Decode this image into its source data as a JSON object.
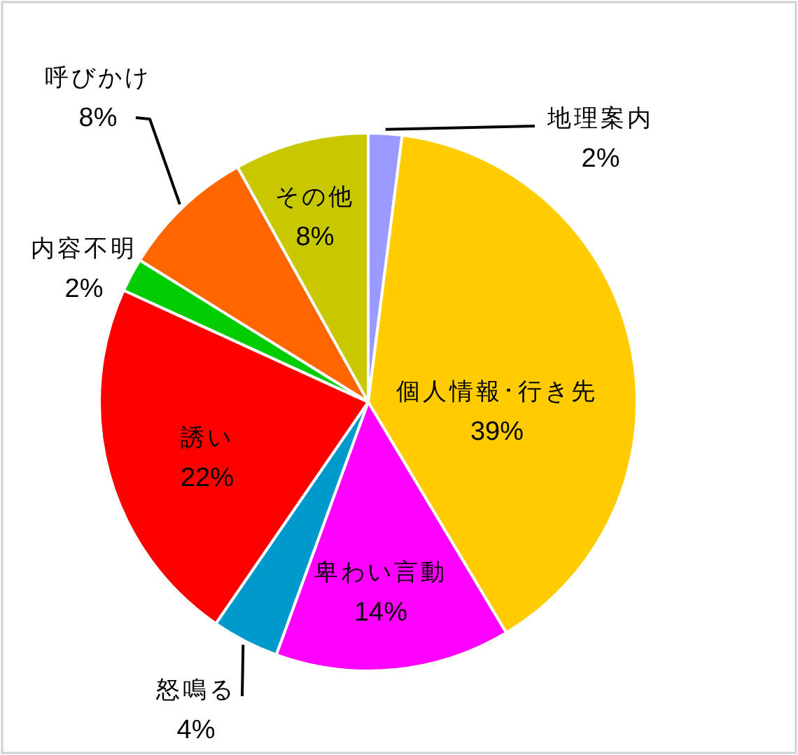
{
  "chart_data": {
    "type": "pie",
    "categories": [
      "地理案内",
      "個人情報･行き先",
      "卑わい言動",
      "怒鳴る",
      "誘い",
      "内容不明",
      "呼びかけ",
      "その他"
    ],
    "values": [
      2,
      39,
      14,
      4,
      22,
      2,
      8,
      8
    ],
    "colors": [
      "#9999ff",
      "#ffcc00",
      "#ff00ff",
      "#0099cc",
      "#ff0000",
      "#00cc00",
      "#ff6600",
      "#c8c800"
    ],
    "value_labels": [
      "2%",
      "39%",
      "14%",
      "4%",
      "22%",
      "2%",
      "8%",
      "8%"
    ]
  }
}
